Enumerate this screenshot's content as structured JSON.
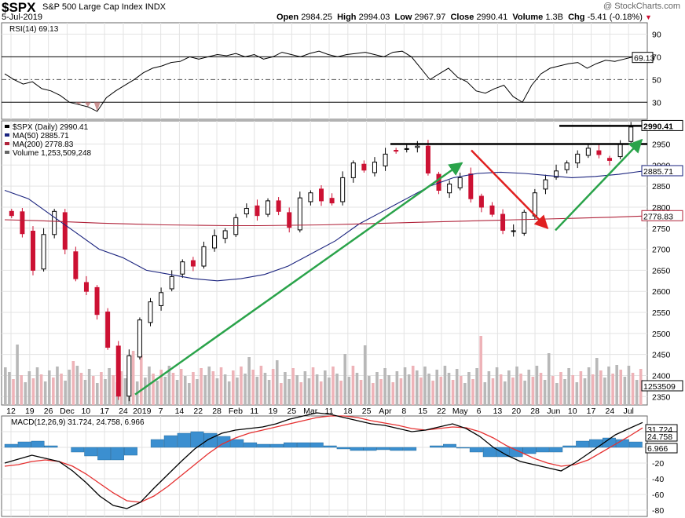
{
  "header": {
    "ticker": "$SPX",
    "name": "S&P 500 Large Cap Index",
    "exchange": "INDX",
    "date": "5-Jul-2019",
    "watermark": "@ StockCharts.com",
    "open_label": "Open",
    "open": "2984.25",
    "high_label": "High",
    "high": "2994.03",
    "low_label": "Low",
    "low": "2967.97",
    "close_label": "Close",
    "close": "2990.41",
    "volume_label": "Volume",
    "volume": "1.3B",
    "chg_label": "Chg",
    "chg": "-5.41 (-0.18%)"
  },
  "colors": {
    "up": "#000000",
    "down": "#cc1133",
    "ma50": "#1a237e",
    "ma200": "#b0233a",
    "rsi": "#000000",
    "macd": "#000000",
    "signal": "#e53030",
    "hist": "#3b8fd0",
    "arrow_green": "#2aa34a",
    "arrow_red": "#e02020",
    "vol_up": "#b8b8b8",
    "vol_down": "#eeb3b8"
  },
  "chart_data": [
    {
      "type": "line",
      "title": "RSI(14) 69.13",
      "series": [
        {
          "name": "RSI(14)",
          "values": [
            55,
            50,
            46,
            48,
            42,
            40,
            36,
            30,
            28,
            26,
            22,
            34,
            40,
            45,
            50,
            56,
            60,
            62,
            65,
            66,
            70,
            68,
            70,
            72,
            71,
            73,
            70,
            72,
            68,
            70,
            74,
            72,
            70,
            73,
            75,
            72,
            70,
            72,
            73,
            74,
            72,
            70,
            74,
            75,
            70,
            60,
            50,
            55,
            60,
            52,
            48,
            40,
            38,
            42,
            45,
            35,
            30,
            45,
            55,
            60,
            62,
            64,
            65,
            60,
            64,
            67,
            66,
            68,
            70,
            69.13
          ]
        }
      ],
      "yticks": [
        90,
        70,
        50,
        30
      ],
      "last_value": "69.13"
    },
    {
      "type": "candlestick",
      "title": "$SPX (Daily) 2990.41",
      "legend": [
        "$SPX (Daily) 2990.41",
        "MA(50) 2885.71",
        "MA(200) 2778.83",
        "Volume 1,253,509,248"
      ],
      "x_labels": [
        "12",
        "19",
        "26",
        "Dec",
        "10",
        "17",
        "24",
        "2019",
        "7",
        "14",
        "22",
        "28",
        "Feb",
        "11",
        "19",
        "25",
        "Mar",
        "11",
        "18",
        "25",
        "Apr",
        "8",
        "15",
        "22",
        "May",
        "6",
        "13",
        "20",
        "28",
        "Jun",
        "10",
        "17",
        "24",
        "Jul"
      ],
      "yticks": [
        2950,
        2900,
        2850,
        2800,
        2750,
        2700,
        2650,
        2600,
        2550,
        2500,
        2450,
        2400,
        2350
      ],
      "close": [
        2780,
        2737,
        2650,
        2735,
        2790,
        2700,
        2630,
        2600,
        2545,
        2467,
        2351,
        2447,
        2532,
        2575,
        2597,
        2635,
        2670,
        2660,
        2706,
        2732,
        2744,
        2775,
        2797,
        2780,
        2815,
        2790,
        2752,
        2822,
        2834,
        2815,
        2810,
        2870,
        2905,
        2888,
        2907,
        2926,
        2933,
        2939,
        2945,
        2881,
        2840,
        2855,
        2870,
        2820,
        2800,
        2783,
        2745,
        2744,
        2788,
        2834,
        2865,
        2886,
        2905,
        2926,
        2940,
        2925,
        2911,
        2950,
        2990.41
      ],
      "ma50": [
        2840,
        2820,
        2780,
        2740,
        2700,
        2680,
        2650,
        2640,
        2630,
        2625,
        2630,
        2640,
        2660,
        2690,
        2720,
        2760,
        2790,
        2820,
        2850,
        2870,
        2880,
        2883,
        2880,
        2875,
        2870,
        2873,
        2878,
        2885.71
      ],
      "ma200": [
        2770,
        2768,
        2765,
        2762,
        2760,
        2758,
        2757,
        2756,
        2756,
        2757,
        2758,
        2760,
        2762,
        2764,
        2766,
        2768,
        2770,
        2772,
        2774,
        2776,
        2778.83
      ],
      "volume_label": "1253509",
      "resistance": [
        2950,
        2993
      ],
      "last_value": "2990.41",
      "ma50_value": "2885.71",
      "ma200_value": "2778.83"
    },
    {
      "type": "line",
      "title": "MACD(12,26,9) 31.724, 24.758, 6.966",
      "legend": [
        "MACD(12,26,9) 31.724, 24.758, 6.966"
      ],
      "yticks": [
        20,
        0,
        -20,
        -40,
        -60,
        -80
      ],
      "macd": [
        -20,
        -15,
        -10,
        -14,
        -18,
        -30,
        -45,
        -62,
        -74,
        -78,
        -70,
        -52,
        -35,
        -18,
        -2,
        10,
        18,
        22,
        24,
        26,
        30,
        36,
        40,
        44,
        42,
        38,
        34,
        30,
        28,
        24,
        20,
        22,
        26,
        30,
        24,
        14,
        0,
        -10,
        -18,
        -22,
        -26,
        -30,
        -20,
        -8,
        4,
        16,
        24,
        31.724
      ],
      "signal": [
        -24,
        -22,
        -18,
        -16,
        -18,
        -24,
        -34,
        -46,
        -58,
        -68,
        -70,
        -62,
        -50,
        -36,
        -22,
        -8,
        4,
        12,
        18,
        22,
        26,
        30,
        34,
        38,
        40,
        40,
        38,
        34,
        31,
        28,
        24,
        22,
        24,
        26,
        25,
        20,
        12,
        2,
        -6,
        -14,
        -20,
        -24,
        -22,
        -16,
        -6,
        4,
        14,
        24.758
      ],
      "hist": [
        4,
        7,
        8,
        2,
        0,
        -6,
        -11,
        -16,
        -16,
        -10,
        0,
        10,
        15,
        18,
        20,
        18,
        14,
        10,
        6,
        4,
        4,
        6,
        6,
        6,
        2,
        -2,
        -4,
        -4,
        -3,
        -4,
        -4,
        0,
        2,
        4,
        -1,
        -6,
        -12,
        -12,
        -12,
        -8,
        -6,
        -6,
        2,
        8,
        10,
        12,
        10,
        6.966
      ],
      "last_values": [
        "31.724",
        "24.758",
        "6.966"
      ]
    }
  ]
}
